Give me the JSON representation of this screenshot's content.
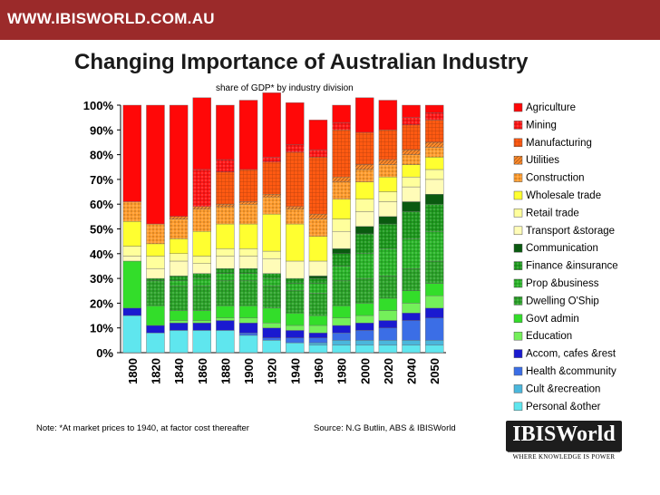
{
  "header": {
    "site": "WWW.IBISWORLD.COM.AU"
  },
  "colors": {
    "brand_bar": "#9b2a2a"
  },
  "chart_data": {
    "type": "bar",
    "stacked": true,
    "title": "Changing Importance of Australian Industry",
    "subtitle": "share of GDP* by industry division",
    "ylim": [
      0,
      100
    ],
    "yticks": [
      "0%",
      "10%",
      "20%",
      "30%",
      "40%",
      "50%",
      "60%",
      "70%",
      "80%",
      "90%",
      "100%"
    ],
    "categories": [
      "1800",
      "1820",
      "1840",
      "1860",
      "1880",
      "1900",
      "1920",
      "1940",
      "1960",
      "1980",
      "2000",
      "2020",
      "2040",
      "2050"
    ],
    "legend_position": "right",
    "series": [
      {
        "name": "Personal &other",
        "color": "#5fe6ee",
        "pattern": "none",
        "values": [
          15,
          8,
          9,
          9,
          9,
          7,
          5,
          4,
          3,
          3,
          3,
          3,
          3,
          3
        ]
      },
      {
        "name": "Cult &recreation",
        "color": "#4ab7dc",
        "pattern": "none",
        "values": [
          0,
          0,
          0,
          0,
          0,
          0,
          0,
          0,
          1,
          2,
          2,
          2,
          2,
          2
        ]
      },
      {
        "name": "Health &community",
        "color": "#3b6ee6",
        "pattern": "none",
        "values": [
          0,
          0,
          0,
          0,
          0,
          1,
          1,
          2,
          2,
          3,
          4,
          5,
          8,
          9
        ]
      },
      {
        "name": "Accom, cafes &rest",
        "color": "#1a1ad0",
        "pattern": "none",
        "values": [
          3,
          3,
          3,
          3,
          4,
          4,
          4,
          3,
          2,
          3,
          3,
          3,
          3,
          4
        ]
      },
      {
        "name": "Education",
        "color": "#74f05a",
        "pattern": "none",
        "values": [
          0,
          0,
          1,
          1,
          1,
          2,
          2,
          2,
          3,
          3,
          3,
          4,
          4,
          5
        ]
      },
      {
        "name": "Govt admin",
        "color": "#33dd2a",
        "pattern": "none",
        "values": [
          19,
          8,
          4,
          4,
          5,
          5,
          6,
          5,
          4,
          5,
          5,
          5,
          5,
          5
        ]
      },
      {
        "name": "Dwelling O'Ship",
        "color": "#2ca32a",
        "pattern": "dots",
        "values": [
          0,
          10,
          10,
          10,
          10,
          10,
          9,
          9,
          9,
          10,
          10,
          9,
          9,
          9
        ]
      },
      {
        "name": "Prop &business",
        "color": "#2bb52a",
        "pattern": "dots",
        "values": [
          0,
          0,
          2,
          3,
          3,
          3,
          3,
          3,
          4,
          6,
          10,
          11,
          12,
          12
        ]
      },
      {
        "name": "Finance &insurance",
        "color": "#1f9a1f",
        "pattern": "dots",
        "values": [
          0,
          1,
          2,
          2,
          2,
          2,
          2,
          2,
          2,
          5,
          8,
          10,
          11,
          11
        ]
      },
      {
        "name": "Communication",
        "color": "#0a5a10",
        "pattern": "none",
        "values": [
          0,
          0,
          0,
          0,
          0,
          0,
          0,
          0,
          1,
          2,
          3,
          3,
          4,
          4
        ]
      },
      {
        "name": "Transport &storage",
        "color": "#fffcb8",
        "pattern": "none",
        "values": [
          2,
          4,
          6,
          4,
          5,
          5,
          6,
          7,
          6,
          7,
          6,
          6,
          6,
          6
        ]
      },
      {
        "name": "Retail trade",
        "color": "#ffff9c",
        "pattern": "none",
        "values": [
          4,
          5,
          3,
          3,
          3,
          3,
          3,
          0,
          0,
          5,
          5,
          4,
          4,
          4
        ]
      },
      {
        "name": "Wholesale trade",
        "color": "#ffff30",
        "pattern": "none",
        "values": [
          10,
          5,
          6,
          10,
          10,
          10,
          15,
          15,
          10,
          8,
          7,
          6,
          5,
          5
        ]
      },
      {
        "name": "Construction",
        "color": "#ff9c2e",
        "pattern": "dots",
        "values": [
          8,
          8,
          8,
          9,
          7,
          8,
          7,
          6,
          7,
          7,
          5,
          5,
          4,
          4
        ]
      },
      {
        "name": "Utilities",
        "color": "#ff8a2a",
        "pattern": "hatch",
        "values": [
          0,
          0,
          1,
          1,
          1,
          1,
          1,
          1,
          2,
          2,
          2,
          2,
          2,
          2
        ]
      },
      {
        "name": "Manufacturing",
        "color": "#ff5a12",
        "pattern": "grid",
        "values": [
          0,
          0,
          0,
          0,
          13,
          13,
          13,
          22,
          23,
          19,
          13,
          12,
          10,
          9
        ]
      },
      {
        "name": "Mining",
        "color": "#ff1717",
        "pattern": "dots",
        "values": [
          0,
          0,
          0,
          15,
          5,
          0,
          2,
          3,
          3,
          3,
          0,
          0,
          3,
          3
        ]
      },
      {
        "name": "Agriculture",
        "color": "#ff0808",
        "pattern": "none",
        "values": [
          39,
          48,
          45,
          29,
          22,
          28,
          26,
          17,
          12,
          7,
          14,
          12,
          5,
          3
        ]
      }
    ]
  },
  "footer": {
    "note": "Note:  *At market prices to 1940, at factor cost thereafter",
    "source": "Source: N.G Butlin, ABS & IBISWorld"
  },
  "logo": {
    "name": "IBISWorld",
    "tagline": "WHERE KNOWLEDGE IS POWER"
  }
}
